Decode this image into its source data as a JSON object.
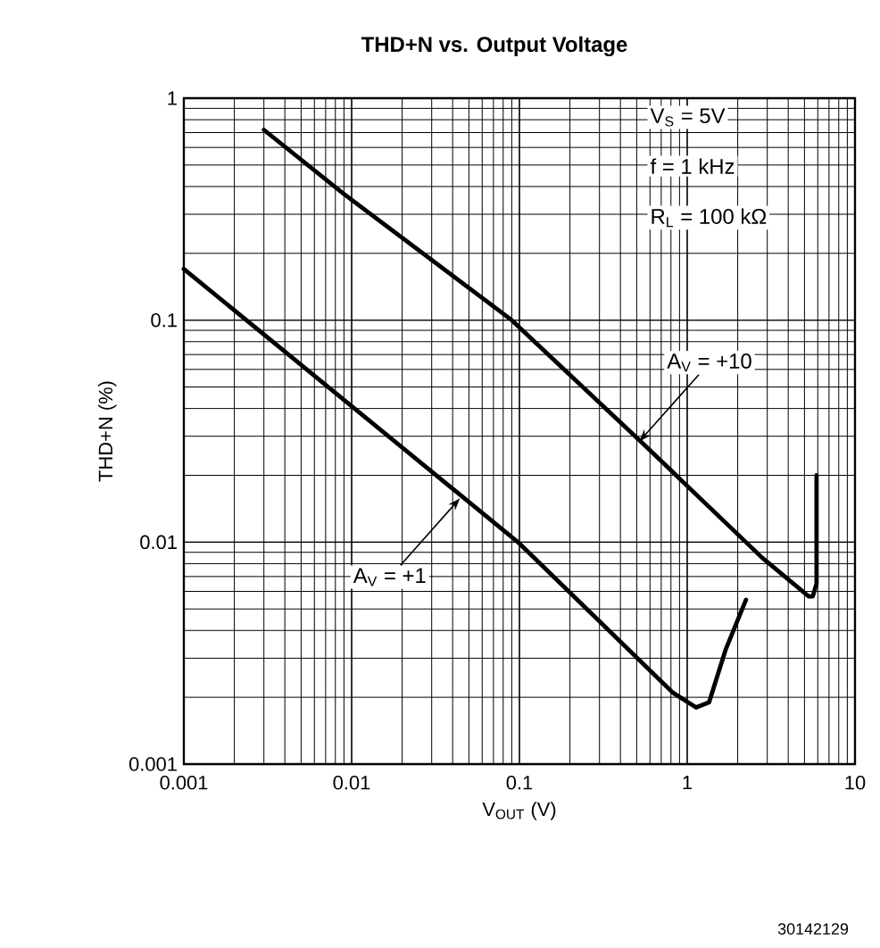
{
  "chart_data": {
    "type": "line",
    "title": "THD+N vs. Output Voltage",
    "xlabel": "V$_{OUT}$ (V)",
    "ylabel": "THD+N (%)",
    "log": "xy",
    "grid": true,
    "marker": "none",
    "line_style": "solid",
    "xlim": [
      0.001,
      10
    ],
    "ylim": [
      0.001,
      1
    ],
    "xticks": [
      0.001,
      0.01,
      0.1,
      1,
      10
    ],
    "yticks": [
      0.001,
      0.01,
      0.1,
      1
    ],
    "series": [
      {
        "color": "#000000",
        "x": [
          0.003,
          0.009,
          0.09,
          0.54,
          2.8,
          5.3,
          5.6,
          5.9,
          5.9
        ],
        "values": [
          0.72,
          0.37,
          0.1,
          0.028,
          0.0085,
          0.0057,
          0.0057,
          0.0065,
          0.02
        ]
      },
      {
        "color": "#000000",
        "x": [
          0.001,
          0.098,
          0.82,
          1.13,
          1.35,
          1.7,
          2.24
        ],
        "values": [
          0.17,
          0.01,
          0.0021,
          0.0018,
          0.0019,
          0.0033,
          0.0055
        ]
      }
    ],
    "annotations": [
      "V$_{S}$ = 5V",
      "f = 1 kHz",
      "R$_{L}$ = 100 kΩ",
      {
        "text": "A$_{V}$ = +10",
        "x": 0.51,
        "y": 0.028
      },
      {
        "text": "A$_{V}$ = +1",
        "x": 0.045,
        "y": 0.016
      },
      "30142129"
    ]
  }
}
